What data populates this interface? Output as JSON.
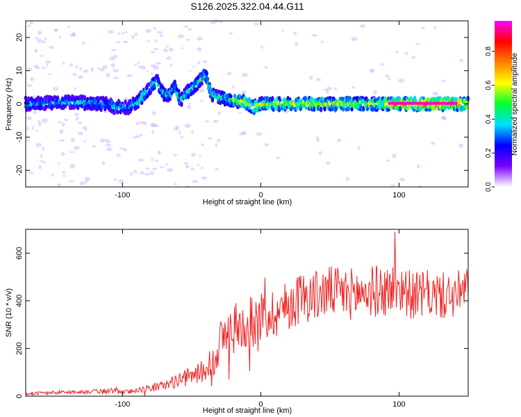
{
  "figure_title": "S126.2025.322.04.44.G11",
  "chart_data": [
    {
      "type": "heatmap",
      "title": "S126.2025.322.04.44.G11",
      "xlabel": "Height of straight line (km)",
      "ylabel": "Frequency (Hz)",
      "xlim": [
        -170,
        150
      ],
      "ylim": [
        -25,
        25
      ],
      "xticks": [
        -100,
        0,
        100
      ],
      "yticks": [
        -20,
        -10,
        0,
        10,
        20
      ],
      "grid": false,
      "colorbar": {
        "label": "Normalized spectral amplitude",
        "range": [
          0,
          0.98
        ],
        "ticks": [
          0.0,
          0.2,
          0.4,
          0.6,
          0.8
        ],
        "colormap": [
          "#ffffff",
          "#7a00ff",
          "#0000ff",
          "#00e0ff",
          "#00ff30",
          "#ffff00",
          "#ff8000",
          "#ff0000",
          "#ff00ff"
        ]
      },
      "ridge_center_hz": [
        [
          -170,
          0.0
        ],
        [
          -140,
          0.5
        ],
        [
          -110,
          0.0
        ],
        [
          -105,
          -1.0
        ],
        [
          -95,
          -1.0
        ],
        [
          -88,
          1.0
        ],
        [
          -82,
          4.0
        ],
        [
          -75,
          7.0
        ],
        [
          -72,
          4.0
        ],
        [
          -68,
          2.0
        ],
        [
          -62,
          5.0
        ],
        [
          -58,
          1.0
        ],
        [
          -52,
          4.0
        ],
        [
          -46,
          6.0
        ],
        [
          -40,
          9.0
        ],
        [
          -36,
          3.0
        ],
        [
          -30,
          2.0
        ],
        [
          -20,
          1.0
        ],
        [
          -12,
          0.5
        ],
        [
          -5,
          -1.0
        ],
        [
          0,
          0.0
        ],
        [
          20,
          0.0
        ],
        [
          40,
          0.0
        ],
        [
          60,
          0.0
        ],
        [
          80,
          0.0
        ],
        [
          90,
          0.0
        ],
        [
          150,
          0.0
        ]
      ]
    },
    {
      "type": "line",
      "xlabel": "Height of straight line (km)",
      "ylabel": "SNR (10 * v/v)",
      "xlim": [
        -170,
        150
      ],
      "ylim": [
        0,
        700
      ],
      "xticks": [
        -100,
        0,
        100
      ],
      "yticks": [
        0,
        200,
        400,
        600
      ],
      "grid": false,
      "color": "#ee2222",
      "series": [
        {
          "name": "SNR",
          "envelope_x": [
            -170,
            -150,
            -130,
            -115,
            -105,
            -100,
            -90,
            -80,
            -70,
            -60,
            -50,
            -40,
            -35,
            -30,
            -25,
            -20,
            -10,
            0,
            10,
            20,
            30,
            40,
            50,
            60,
            70,
            80,
            90,
            100,
            110,
            120,
            130,
            140,
            150
          ],
          "envelope_mean": [
            10,
            15,
            18,
            20,
            25,
            15,
            25,
            35,
            45,
            65,
            85,
            110,
            150,
            220,
            260,
            280,
            300,
            330,
            350,
            380,
            420,
            420,
            440,
            430,
            430,
            440,
            440,
            460,
            420,
            430,
            420,
            420,
            450
          ],
          "envelope_spread": [
            6,
            8,
            8,
            10,
            15,
            8,
            12,
            16,
            20,
            30,
            40,
            50,
            80,
            100,
            100,
            110,
            110,
            110,
            110,
            110,
            110,
            110,
            110,
            110,
            110,
            110,
            110,
            110,
            100,
            100,
            100,
            100,
            100
          ],
          "peak_value": 690,
          "peak_x": 97
        }
      ]
    }
  ]
}
